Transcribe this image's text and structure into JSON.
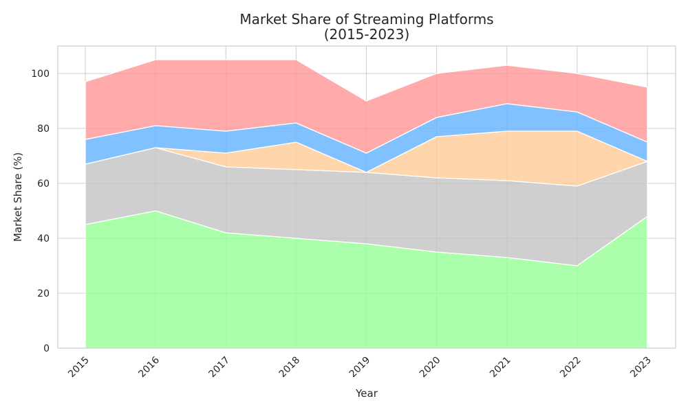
{
  "chart_data": {
    "type": "area",
    "stacked": true,
    "title_line1": "Market Share of Streaming Platforms",
    "title_line2": "(2015-2023)",
    "xlabel": "Year",
    "ylabel": "Market Share (%)",
    "categories": [
      "2015",
      "2016",
      "2017",
      "2018",
      "2019",
      "2020",
      "2021",
      "2022",
      "2023"
    ],
    "ylim": [
      0,
      110
    ],
    "yticks": [
      0,
      20,
      40,
      60,
      80,
      100
    ],
    "grid": true,
    "legend": "none",
    "series": [
      {
        "values": [
          45,
          50,
          42,
          40,
          38,
          35,
          33,
          30,
          48
        ],
        "color": "#99ff99"
      },
      {
        "values": [
          22,
          23,
          24,
          25,
          26,
          27,
          28,
          29,
          20
        ],
        "color": "#c4c4c4"
      },
      {
        "values": [
          0,
          0,
          5,
          10,
          0,
          15,
          18,
          20,
          0
        ],
        "color": "#ffcc99"
      },
      {
        "values": [
          9,
          8,
          8,
          7,
          7,
          7,
          10,
          7,
          7
        ],
        "color": "#66b3ff"
      },
      {
        "values": [
          21,
          24,
          26,
          23,
          19,
          16,
          14,
          14,
          20
        ],
        "color": "#ff9999"
      }
    ]
  }
}
